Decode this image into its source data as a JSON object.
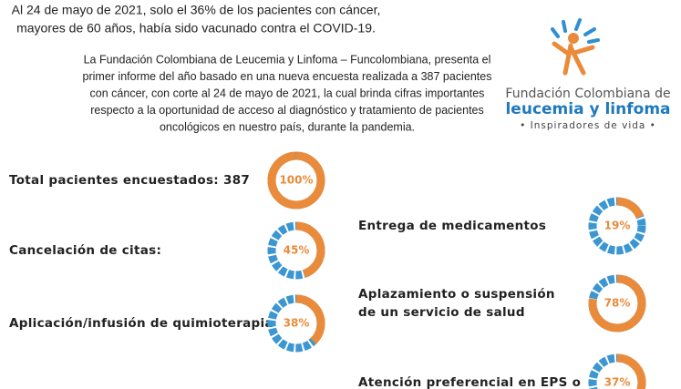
{
  "header": {
    "lines": [
      "Al 24 de mayo de 2021, solo el 36% de los pacientes con cáncer,",
      "mayores de 60 años, había sido vacunado contra el COVID-19."
    ]
  },
  "intro": {
    "lines": [
      "La Fundación Colombiana de Leucemia y Linfoma – Funcolombiana, presenta el",
      "primer informe del año basado en una nueva encuesta realizada a 387 pacientes",
      "con cáncer, con corte al 24 de mayo de 2021, la cual brinda cifras importantes",
      "respecto a la oportunidad de acceso al diagnóstico y tratamiento de pacientes",
      "oncológicos en nuestro país, durante la pandemia."
    ]
  },
  "logo": {
    "line1": "Fundación Colombiana de",
    "line2": "leucemia y linfoma",
    "tagline": "• Inspiradores de vida •"
  },
  "left_items": [
    {
      "label": [
        "Total pacientes encuestados: 387"
      ],
      "value": 100,
      "label_pct": "100%"
    },
    {
      "label": [
        "Cancelación de citas:"
      ],
      "value": 45,
      "label_pct": "45%"
    },
    {
      "label": [
        "Aplicación/infusión de quimioterapia"
      ],
      "value": 38,
      "label_pct": "38%"
    }
  ],
  "right_items": [
    {
      "label": [
        "Entrega de medicamentos"
      ],
      "value": 19,
      "label_pct": "19%"
    },
    {
      "label": [
        "Aplazamiento o suspensión",
        "de un servicio de salud"
      ],
      "value": 78,
      "label_pct": "78%"
    },
    {
      "label": [
        "Atención preferencial en EPS o"
      ],
      "value": 37,
      "label_pct": "37%"
    }
  ]
}
